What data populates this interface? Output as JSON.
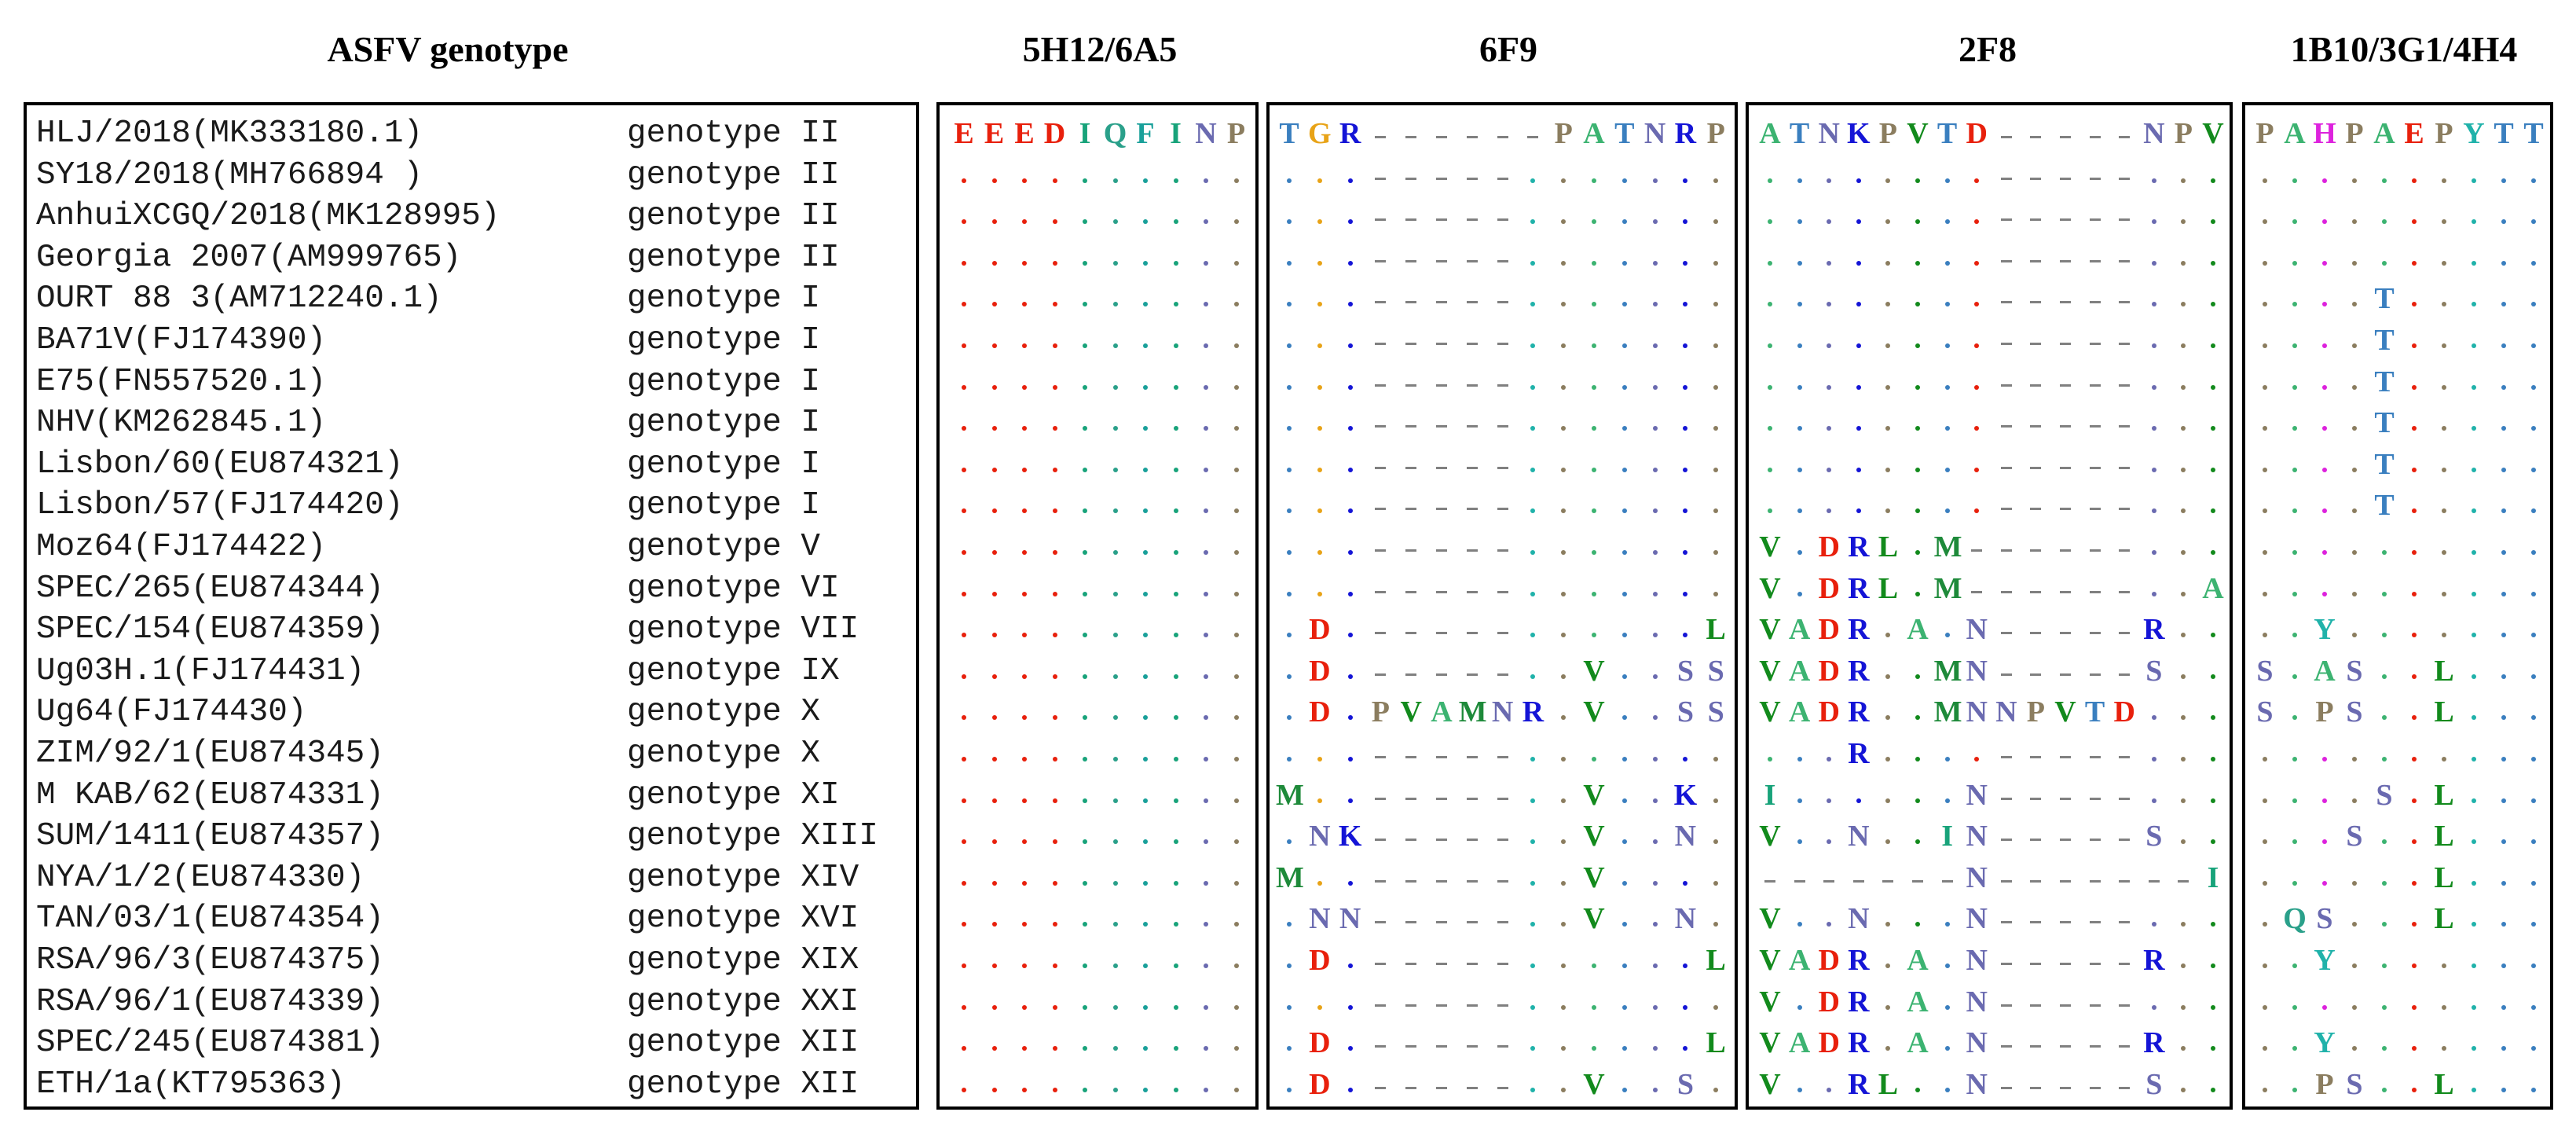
{
  "headers": {
    "genotype": "ASFV genotype",
    "p1": "5H12/6A5",
    "p2": "6F9",
    "p3": "2F8",
    "p4": "1B10/3G1/4H4"
  },
  "strains": [
    {
      "name": "HLJ/2018(MK333180.1)",
      "genotype": "genotype II"
    },
    {
      "name": "SY18/2018(MH766894 )",
      "genotype": "genotype II"
    },
    {
      "name": "AnhuiXCGQ/2018(MK128995)",
      "genotype": "genotype II"
    },
    {
      "name": "Georgia 2007(AM999765)",
      "genotype": "genotype II"
    },
    {
      "name": "OURT 88 3(AM712240.1)",
      "genotype": "genotype I"
    },
    {
      "name": "BA71V(FJ174390)",
      "genotype": "genotype I"
    },
    {
      "name": "E75(FN557520.1)",
      "genotype": "genotype I"
    },
    {
      "name": "NHV(KM262845.1)",
      "genotype": "genotype I"
    },
    {
      "name": "Lisbon/60(EU874321)",
      "genotype": "genotype I"
    },
    {
      "name": "Lisbon/57(FJ174420)",
      "genotype": "genotype I"
    },
    {
      "name": "Moz64(FJ174422)",
      "genotype": "genotype V"
    },
    {
      "name": "SPEC/265(EU874344)",
      "genotype": "genotype VI"
    },
    {
      "name": "SPEC/154(EU874359)",
      "genotype": "genotype VII"
    },
    {
      "name": "Ug03H.1(FJ174431)",
      "genotype": "genotype IX"
    },
    {
      "name": "Ug64(FJ174430)",
      "genotype": "genotype X"
    },
    {
      "name": "ZIM/92/1(EU874345)",
      "genotype": "genotype X"
    },
    {
      "name": "M KAB/62(EU874331)",
      "genotype": "genotype XI"
    },
    {
      "name": "SUM/1411(EU874357)",
      "genotype": "genotype XIII"
    },
    {
      "name": "NYA/1/2(EU874330)",
      "genotype": "genotype XIV"
    },
    {
      "name": "TAN/03/1(EU874354)",
      "genotype": "genotype XVI"
    },
    {
      "name": "RSA/96/3(EU874375)",
      "genotype": "genotype XIX"
    },
    {
      "name": "RSA/96/1(EU874339)",
      "genotype": "genotype XXI"
    },
    {
      "name": "SPEC/245(EU874381)",
      "genotype": "genotype XII"
    },
    {
      "name": "ETH/1a(KT795363)",
      "genotype": "genotype XII"
    }
  ],
  "alignments": {
    "p1": [
      "EEEDIQFINP",
      "..........",
      "..........",
      "..........",
      "..........",
      "..........",
      "..........",
      "..........",
      "..........",
      "..........",
      "..........",
      "..........",
      "..........",
      "..........",
      "..........",
      "..........",
      "..........",
      "..........",
      "..........",
      "..........",
      "..........",
      "..........",
      "..........",
      ".........."
    ],
    "p2": [
      "TGR------PATNRP",
      "...-----.......",
      "...-----.......",
      "...-----.......",
      "...-----.......",
      "...-----.......",
      "...-----.......",
      "...-----.......",
      "...-----.......",
      "...-----.......",
      "...-----.......",
      "...-----.......",
      ".D.-----......L",
      ".D.-----..V..SS",
      ".D.PVAMNR.V..SS",
      "...-----.......",
      "M..-----..V..K.",
      ".NK-----..V..N.",
      "M..-----..V....",
      ".NN-----..V..N.",
      ".D.-----......L",
      "...-----.......",
      ".D.-----......L",
      ".D.-----..V..S."
    ],
    "p3": [
      "ATNKPVTD-----NPV",
      "........-----...",
      "........-----...",
      "........-----...",
      "........-----...",
      "........-----...",
      "........-----...",
      "........-----...",
      "........-----...",
      "........-----...",
      "V.DRL.M------...",
      "V.DRL.M------..A",
      "VADR.A.N-----R..",
      "VADR..MN-----S..",
      "VADR..MNNPVTD...",
      "...R....-----...",
      "I......N-----...",
      "V..N..IN-----S..",
      "-------N-------I",
      "V..N...N-----...",
      "VADR.A.N-----R..",
      "V.DR.A.N-----...",
      "VADR.A.N-----R..",
      "V..RL..N-----S.."
    ],
    "p4": [
      "PAHPAEPYTT",
      "..........",
      "..........",
      "..........",
      "....T.....",
      "....T.....",
      "....T.....",
      "....T.....",
      "....T.....",
      "....T.....",
      "..........",
      "..........",
      "..Y.......",
      "S.AS..L...",
      "S.PS..L...",
      "..........",
      "....S.L...",
      "...S..L...",
      "......L...",
      ".QS...L...",
      "..Y.......",
      "..........",
      "..Y.......",
      "..PS..L..."
    ]
  },
  "colors": {
    "A": "#3cb371",
    "C": "#20b2aa",
    "D": "#e8200c",
    "E": "#e8200c",
    "F": "#19a09a",
    "G": "#e8a317",
    "H": "#dd22dd",
    "I": "#18a37a",
    "K": "#1414d6",
    "L": "#128a1c",
    "M": "#1e8a3a",
    "N": "#6a6ab0",
    "P": "#8b7d5f",
    "Q": "#2aa08a",
    "R": "#1414d6",
    "S": "#6a6ab0",
    "T": "#3a7fbf",
    "V": "#128a1c",
    "Y": "#20b2aa",
    "dash": "#808080",
    "dot_default": "#20b2aa"
  }
}
